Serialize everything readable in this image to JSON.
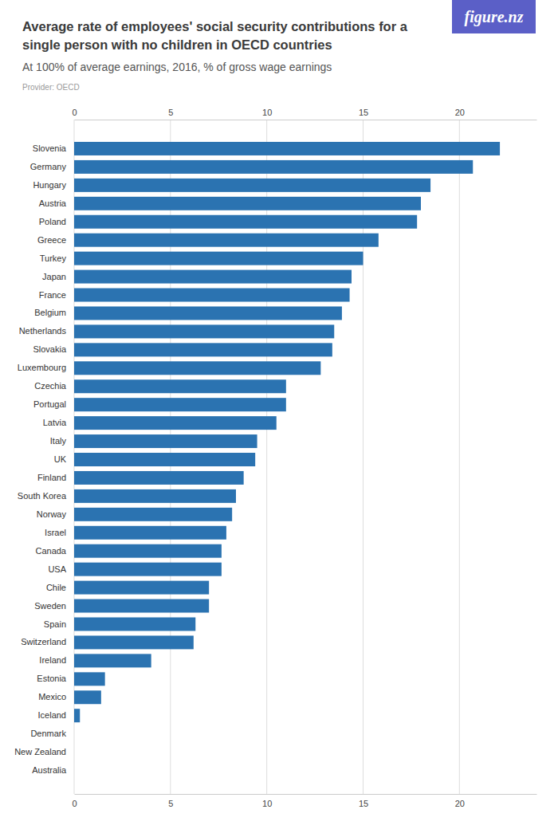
{
  "chart_data": {
    "type": "bar",
    "orientation": "horizontal",
    "title": "Average rate of employees' social security contributions for a single person with no children in OECD countries",
    "subtitle": "At 100% of average earnings, 2016, % of gross wage earnings",
    "provider": "Provider: OECD",
    "logo": "figure.nz",
    "categories": [
      "Slovenia",
      "Germany",
      "Hungary",
      "Austria",
      "Poland",
      "Greece",
      "Turkey",
      "Japan",
      "France",
      "Belgium",
      "Netherlands",
      "Slovakia",
      "Luxembourg",
      "Czechia",
      "Portugal",
      "Latvia",
      "Italy",
      "UK",
      "Finland",
      "South Korea",
      "Norway",
      "Israel",
      "Canada",
      "USA",
      "Chile",
      "Sweden",
      "Spain",
      "Switzerland",
      "Ireland",
      "Estonia",
      "Mexico",
      "Iceland",
      "Denmark",
      "New Zealand",
      "Australia"
    ],
    "values": [
      22.1,
      20.7,
      18.5,
      18.0,
      17.8,
      15.8,
      15.0,
      14.4,
      14.3,
      13.9,
      13.5,
      13.4,
      12.8,
      11.0,
      11.0,
      10.5,
      9.5,
      9.4,
      8.8,
      8.4,
      8.2,
      7.9,
      7.65,
      7.65,
      7.0,
      7.0,
      6.3,
      6.2,
      4.0,
      1.6,
      1.4,
      0.3,
      0,
      0,
      0
    ],
    "color": "#2b73b1",
    "xlim": [
      0,
      24
    ],
    "xticks": [
      0,
      5,
      10,
      15,
      20
    ],
    "grid": true
  }
}
